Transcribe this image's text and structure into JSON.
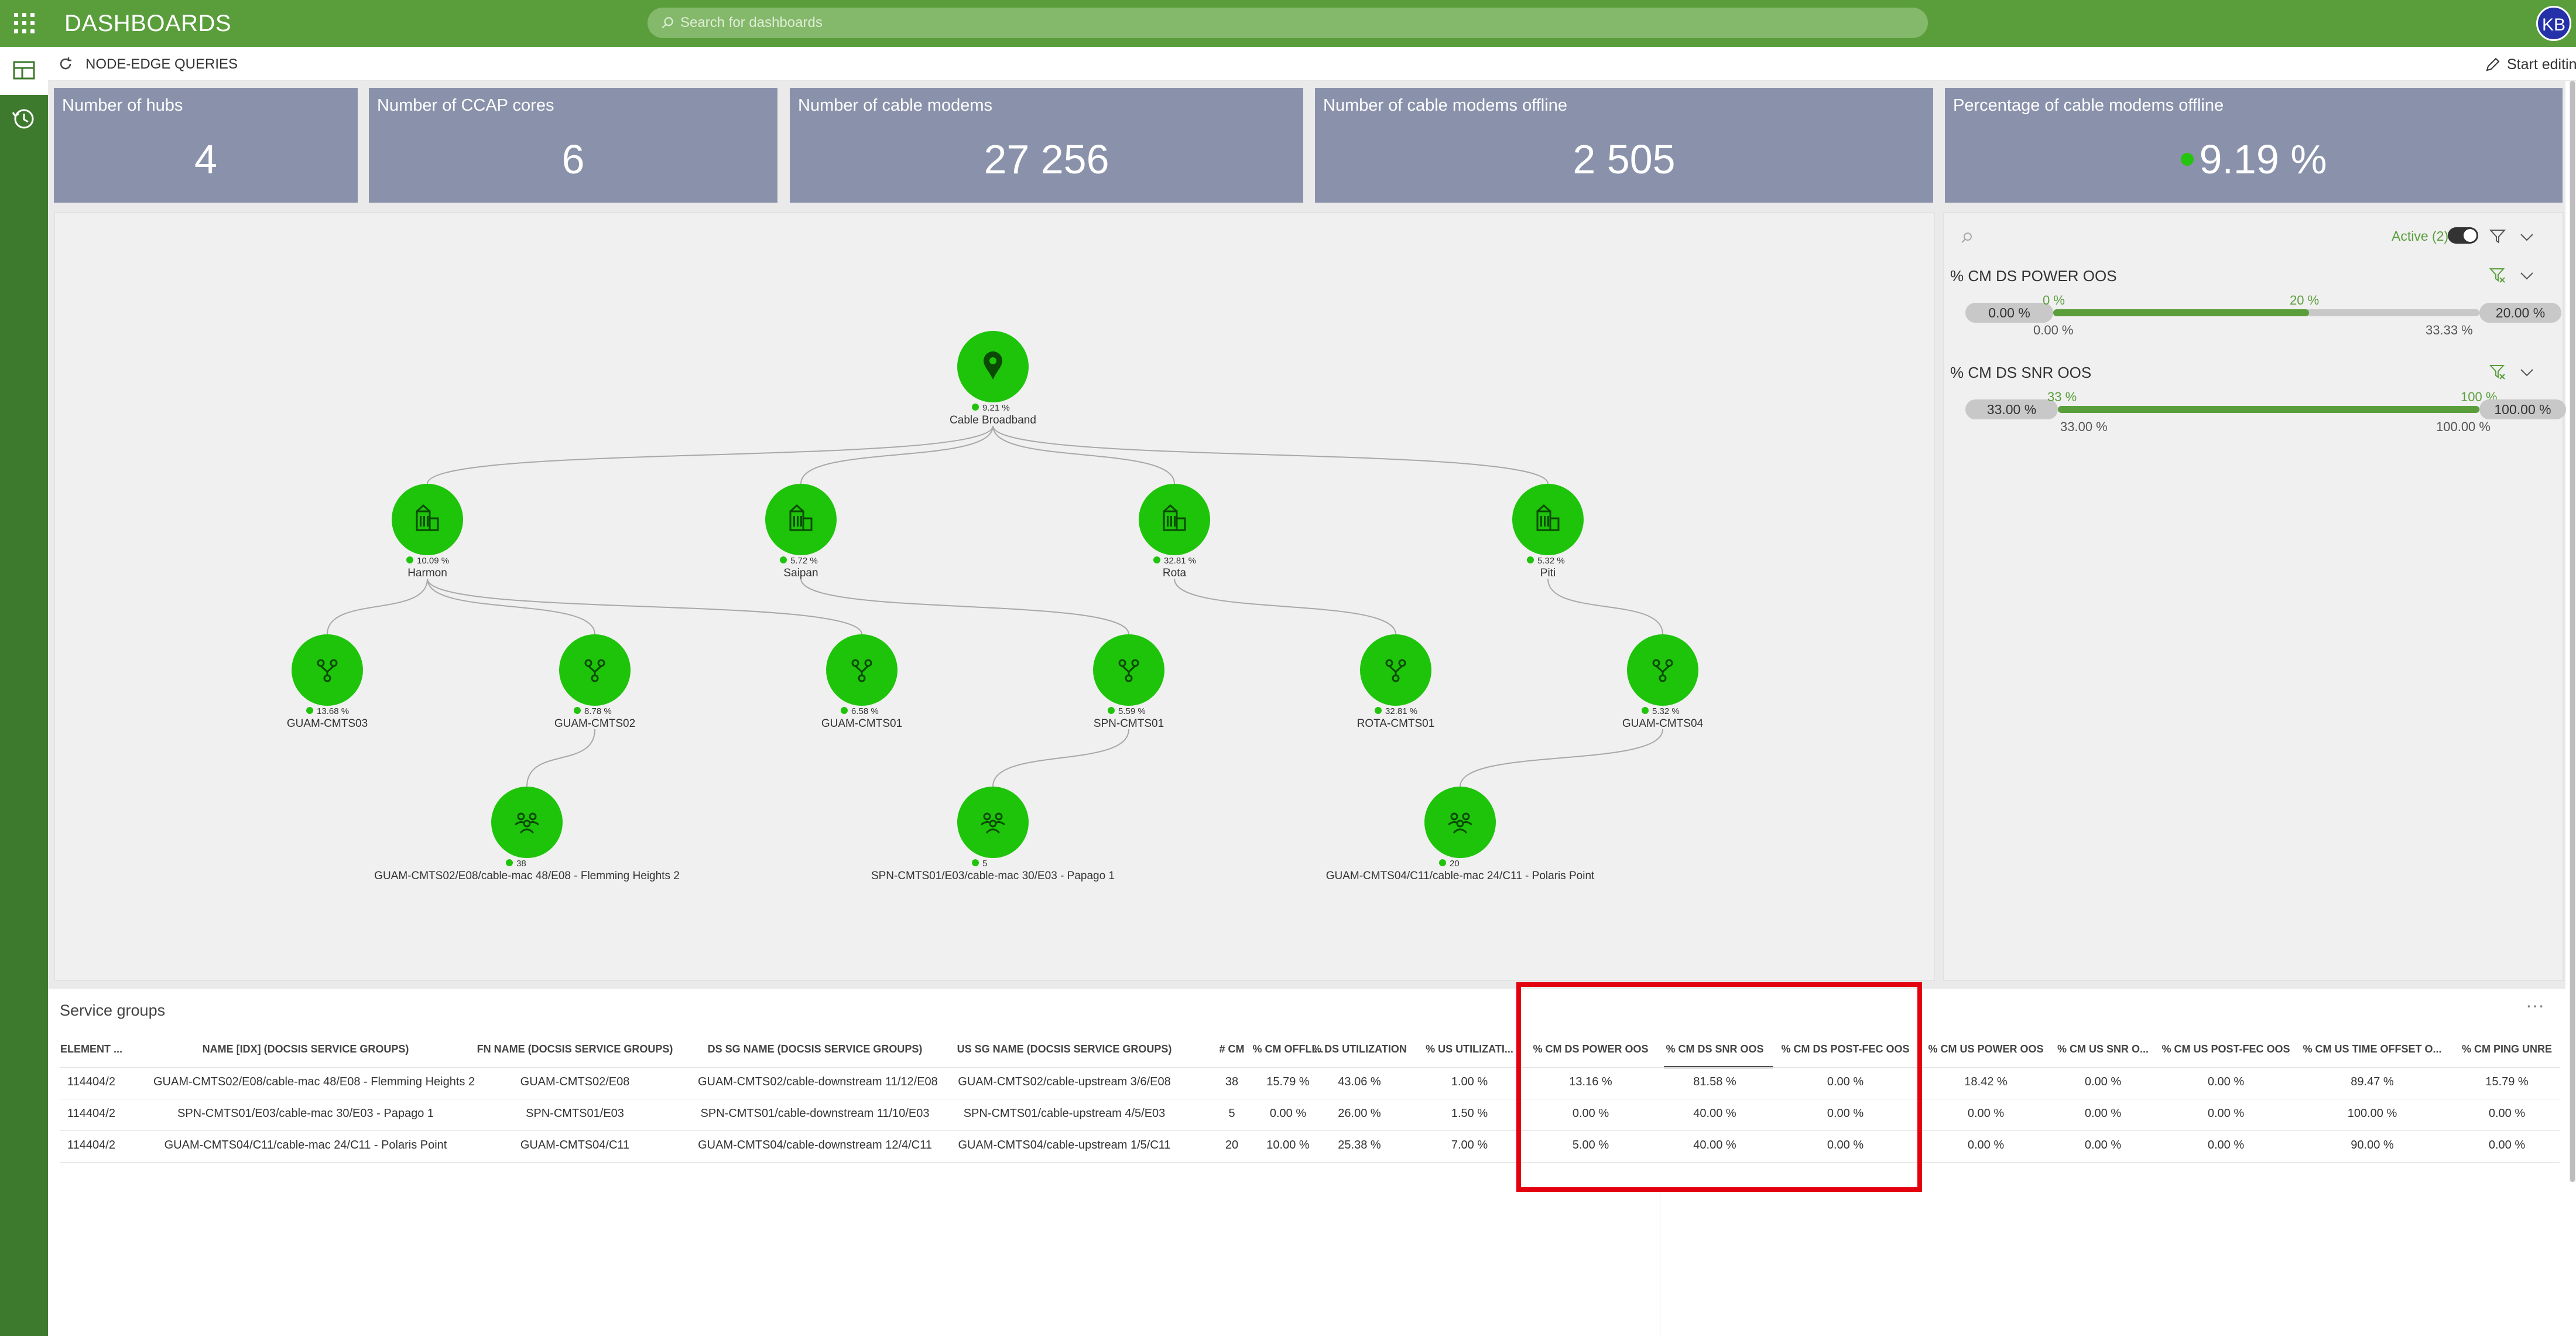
{
  "header": {
    "title": "DASHBOARDS",
    "search_placeholder": "Search for dashboards",
    "avatar_initials": "KB"
  },
  "subbar": {
    "dashboard_name": "NODE-EDGE QUERIES",
    "edit_label": "Start editing",
    "more_label": "···"
  },
  "kpis": [
    {
      "title": "Number of hubs",
      "value": "4"
    },
    {
      "title": "Number of CCAP cores",
      "value": "6"
    },
    {
      "title": "Number of cable modems",
      "value": "27 256"
    },
    {
      "title": "Number of cable modems offline",
      "value": "2 505"
    },
    {
      "title": "Percentage of cable modems offline",
      "value": "9.19 %"
    }
  ],
  "graph": {
    "root": {
      "label": "Cable Broadband",
      "pct": "9.21 %"
    },
    "hubs": [
      {
        "label": "Harmon",
        "pct": "10.09 %"
      },
      {
        "label": "Saipan",
        "pct": "5.72 %"
      },
      {
        "label": "Rota",
        "pct": "32.81 %"
      },
      {
        "label": "Piti",
        "pct": "5.32 %"
      }
    ],
    "cmts": [
      {
        "label": "GUAM-CMTS03",
        "pct": "13.68 %"
      },
      {
        "label": "GUAM-CMTS02",
        "pct": "8.78 %"
      },
      {
        "label": "GUAM-CMTS01",
        "pct": "6.58 %"
      },
      {
        "label": "SPN-CMTS01",
        "pct": "5.59 %"
      },
      {
        "label": "ROTA-CMTS01",
        "pct": "32.81 %"
      },
      {
        "label": "GUAM-CMTS04",
        "pct": "5.32 %"
      }
    ],
    "groups": [
      {
        "label": "GUAM-CMTS02/E08/cable-mac 48/E08 - Flemming Heights 2",
        "count": "38"
      },
      {
        "label": "SPN-CMTS01/E03/cable-mac 30/E03 - Papago 1",
        "count": "5"
      },
      {
        "label": "GUAM-CMTS04/C11/cable-mac 24/C11 - Polaris Point",
        "count": "20"
      }
    ]
  },
  "filters": {
    "active_label": "Active (2)",
    "items": [
      {
        "title": "% CM DS POWER OOS",
        "min_box": "0.00 %",
        "max_box": "20.00 %",
        "sel_min": "0 %",
        "sel_max": "20 %",
        "lo": "0.00 %",
        "hi": "33.33 %"
      },
      {
        "title": "% CM DS SNR OOS",
        "min_box": "33.00 %",
        "max_box": "100.00 %",
        "sel_min": "33 %",
        "sel_max": "100 %",
        "lo": "33.00 %",
        "hi": "100.00 %"
      }
    ]
  },
  "table": {
    "title": "Service groups",
    "more_label": "···",
    "headers": [
      "ELEMENT ...",
      "NAME [IDX] (DOCSIS SERVICE GROUPS)",
      "FN NAME (DOCSIS SERVICE GROUPS)",
      "DS SG NAME (DOCSIS SERVICE GROUPS)",
      "US SG NAME (DOCSIS SERVICE GROUPS)",
      "# CM",
      "% CM OFFLI...",
      "% DS UTILIZATION",
      "% US UTILIZATI...",
      "% CM DS POWER OOS",
      "% CM DS SNR OOS",
      "% CM DS POST-FEC OOS",
      "% CM US POWER OOS",
      "% CM US SNR O...",
      "% CM US POST-FEC OOS",
      "% CM US TIME OFFSET O...",
      "% CM PING UNRE"
    ],
    "rows": [
      [
        "114404/2",
        "GUAM-CMTS02/E08/cable-mac 48/E08 - Flemming Heights 2",
        "GUAM-CMTS02/E08",
        "GUAM-CMTS02/cable-downstream 11/12/E08",
        "GUAM-CMTS02/cable-upstream 3/6/E08",
        "38",
        "15.79 %",
        "43.06 %",
        "1.00 %",
        "13.16 %",
        "81.58 %",
        "0.00 %",
        "18.42 %",
        "0.00 %",
        "0.00 %",
        "89.47 %",
        "15.79 %"
      ],
      [
        "114404/2",
        "SPN-CMTS01/E03/cable-mac 30/E03 - Papago 1",
        "SPN-CMTS01/E03",
        "SPN-CMTS01/cable-downstream 11/10/E03",
        "SPN-CMTS01/cable-upstream 4/5/E03",
        "5",
        "0.00 %",
        "26.00 %",
        "1.50 %",
        "0.00 %",
        "40.00 %",
        "0.00 %",
        "0.00 %",
        "0.00 %",
        "0.00 %",
        "100.00 %",
        "0.00 %"
      ],
      [
        "114404/2",
        "GUAM-CMTS04/C11/cable-mac 24/C11 - Polaris Point",
        "GUAM-CMTS04/C11",
        "GUAM-CMTS04/cable-downstream 12/4/C11",
        "GUAM-CMTS04/cable-upstream 1/5/C11",
        "20",
        "10.00 %",
        "25.38 %",
        "7.00 %",
        "5.00 %",
        "40.00 %",
        "0.00 %",
        "0.00 %",
        "0.00 %",
        "0.00 %",
        "90.00 %",
        "0.00 %"
      ]
    ]
  },
  "colors": {
    "brand": "#5a9e3c",
    "sidebar": "#3e7a2d",
    "kpi": "#8a92ab",
    "node": "#1ec40a",
    "highlight": "#e3000f"
  }
}
